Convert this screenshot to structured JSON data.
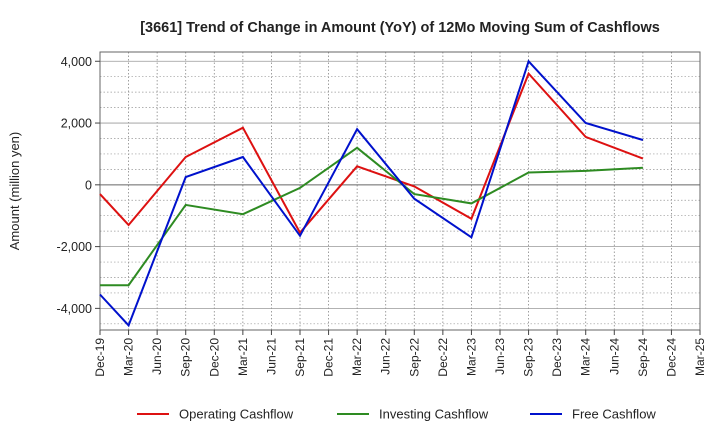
{
  "chart_data": {
    "type": "line",
    "title": "[3661]  Trend of Change in Amount (YoY) of 12Mo Moving Sum of Cashflows",
    "xlabel": "",
    "ylabel": "Amount (million yen)",
    "ylim": [
      -4700,
      4300
    ],
    "yticks": [
      -4000,
      -2000,
      0,
      2000,
      4000
    ],
    "ytick_labels": [
      "-4,000",
      "-2,000",
      "0",
      "2,000",
      "4,000"
    ],
    "grid": true,
    "legend_position": "bottom",
    "categories": [
      "Dec-19",
      "Mar-20",
      "Jun-20",
      "Sep-20",
      "Dec-20",
      "Mar-21",
      "Jun-21",
      "Sep-21",
      "Dec-21",
      "Mar-22",
      "Jun-22",
      "Sep-22",
      "Dec-22",
      "Mar-23",
      "Jun-23",
      "Sep-23",
      "Dec-23",
      "Mar-24",
      "Jun-24",
      "Sep-24",
      "Dec-24",
      "Mar-25"
    ],
    "series": [
      {
        "name": "Operating Cashflow",
        "color": "#dd1111",
        "values": [
          -300,
          -1300,
          null,
          900,
          null,
          1850,
          null,
          -1550,
          null,
          600,
          null,
          -50,
          null,
          -1100,
          null,
          3600,
          null,
          1550,
          null,
          850,
          null,
          null
        ]
      },
      {
        "name": "Investing Cashflow",
        "color": "#2e8b22",
        "values": [
          -3250,
          -3250,
          null,
          -650,
          null,
          -950,
          null,
          -100,
          null,
          1200,
          null,
          -300,
          null,
          -600,
          null,
          400,
          null,
          450,
          null,
          550,
          null,
          null
        ]
      },
      {
        "name": "Free Cashflow",
        "color": "#0011cc",
        "values": [
          -3550,
          -4550,
          null,
          250,
          null,
          900,
          null,
          -1650,
          null,
          1800,
          null,
          -450,
          null,
          -1700,
          null,
          4000,
          null,
          2000,
          null,
          1450,
          null,
          null
        ]
      }
    ]
  }
}
